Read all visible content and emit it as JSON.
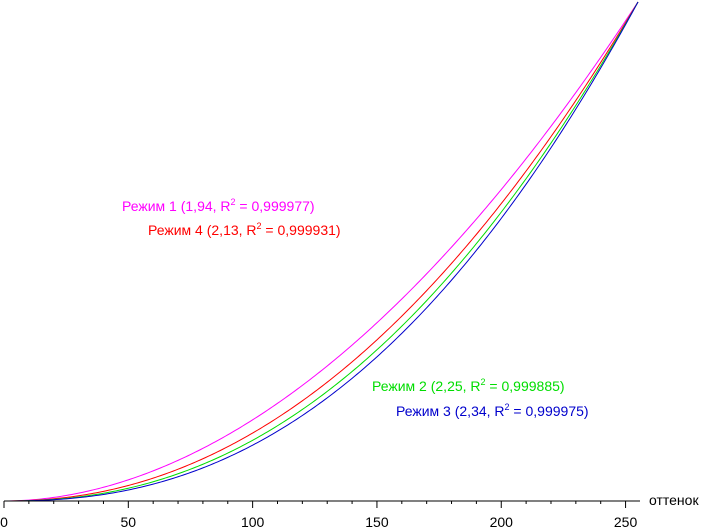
{
  "chart_data": {
    "type": "line",
    "title": "",
    "xlabel": "оттенок",
    "ylabel": "",
    "xlim": [
      0,
      255
    ],
    "ylim": [
      0,
      1
    ],
    "grid": false,
    "x_ticks": [
      0,
      50,
      100,
      150,
      200,
      250
    ],
    "x_tick_labels": [
      "0",
      "50",
      "100",
      "150",
      "200",
      "250"
    ],
    "series": [
      {
        "name": "Режим 1",
        "gamma": 1.94,
        "label_main": "Режим 1 (1,94, R",
        "label_sup": "2",
        "label_end": " = 0,999977)",
        "color": "#ff00ff"
      },
      {
        "name": "Режим 4",
        "gamma": 2.13,
        "label_main": "Режим 4 (2,13, R",
        "label_sup": "2",
        "label_end": " = 0,999931)",
        "color": "#ff0000"
      },
      {
        "name": "Режим 2",
        "gamma": 2.25,
        "label_main": "Режим 2 (2,25, R",
        "label_sup": "2",
        "label_end": " = 0,999885)",
        "color": "#00dd00"
      },
      {
        "name": "Режим 3",
        "gamma": 2.34,
        "label_main": "Режим 3 (2,34, R",
        "label_sup": "2",
        "label_end": " = 0,999975)",
        "color": "#0000cc"
      }
    ]
  }
}
